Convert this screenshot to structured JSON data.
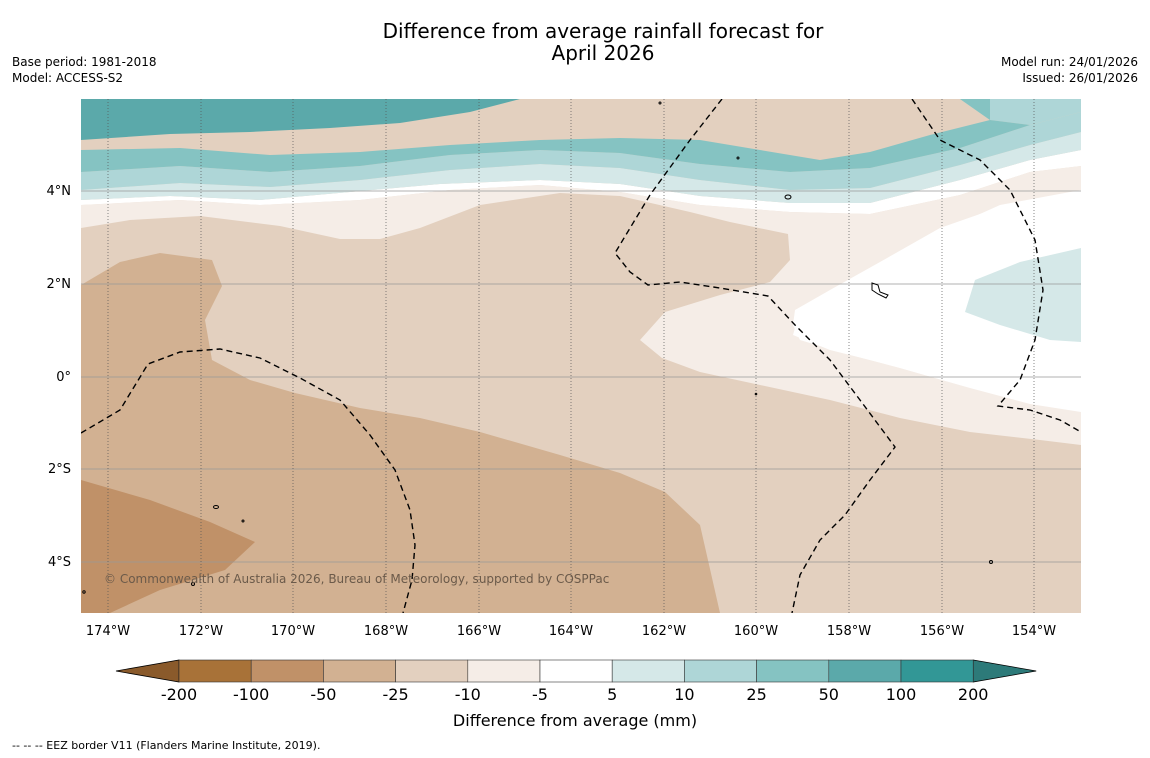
{
  "title": {
    "line1": "Difference from average rainfall forecast for",
    "line2": "April 2026"
  },
  "meta_left": {
    "base_period": "Base period: 1981-2018",
    "model": "Model: ACCESS-S2"
  },
  "meta_right": {
    "model_run": "Model run: 24/01/2026",
    "issued": "Issued: 26/01/2026"
  },
  "map": {
    "lat_labels": [
      "4°N",
      "2°N",
      "0°",
      "2°S",
      "4°S"
    ],
    "lon_labels": [
      "174°W",
      "172°W",
      "170°W",
      "168°W",
      "166°W",
      "164°W",
      "162°W",
      "160°W",
      "158°W",
      "156°W",
      "154°W"
    ],
    "copyright": "© Commonwealth of Australia 2026, Bureau of Meteorology, supported by COSPPac"
  },
  "colorbar": {
    "ticks": [
      "-200",
      "-100",
      "-50",
      "-25",
      "-10",
      "-5",
      "5",
      "10",
      "25",
      "50",
      "100",
      "200"
    ],
    "colors": [
      "#a87238",
      "#c09168",
      "#d2b192",
      "#e3d0bf",
      "#f5ede7",
      "#ffffff",
      "#d5e8e8",
      "#aed6d7",
      "#85c3c2",
      "#5ba9aa",
      "#329796"
    ],
    "low_extend_color": "#8a5a2b",
    "high_extend_color": "#2d7a79",
    "label": "Difference from average (mm)"
  },
  "footer": "--  --  -- EEZ border V11 (Flanders Marine Institute, 2019)."
}
